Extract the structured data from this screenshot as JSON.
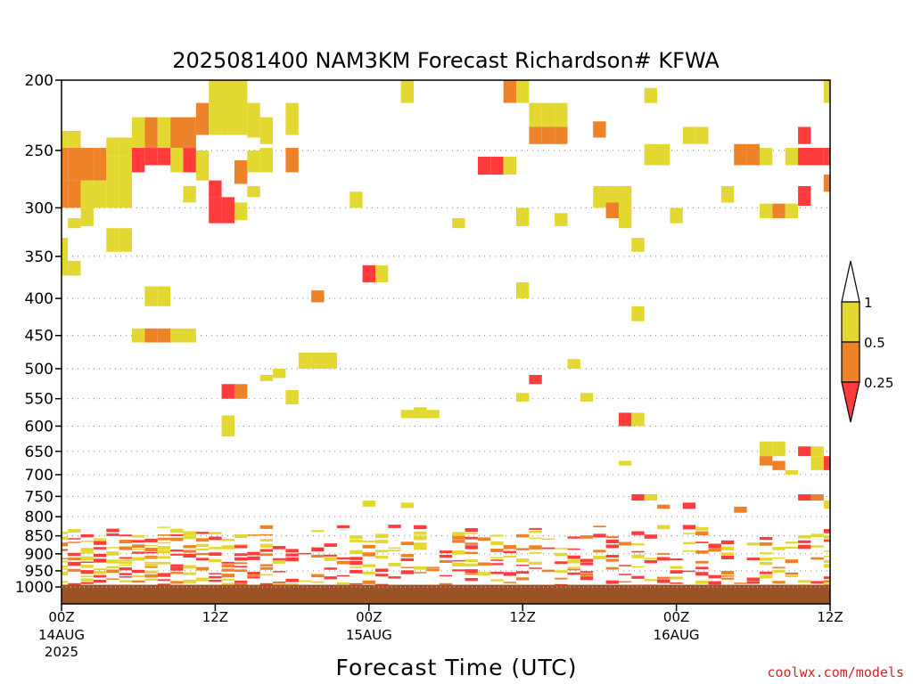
{
  "chart_data": {
    "type": "heatmap",
    "title": "2025081400 NAM3KM Forecast Richardson# KFWA",
    "xlabel": "Forecast Time (UTC)",
    "ylabel": "",
    "y_scale": "log-pressure",
    "y_inverted": true,
    "ylim": [
      1000,
      200
    ],
    "y_ticks": [
      200,
      250,
      300,
      350,
      400,
      450,
      500,
      550,
      600,
      650,
      700,
      750,
      800,
      850,
      900,
      950,
      1000
    ],
    "x_ticks": [
      {
        "x": 0,
        "label": "00Z",
        "date": "14AUG",
        "year": "2025"
      },
      {
        "x": 12,
        "label": "12Z",
        "date": "",
        "year": ""
      },
      {
        "x": 24,
        "label": "00Z",
        "date": "15AUG",
        "year": ""
      },
      {
        "x": 36,
        "label": "12Z",
        "date": "",
        "year": ""
      },
      {
        "x": 48,
        "label": "00Z",
        "date": "16AUG",
        "year": ""
      },
      {
        "x": 60,
        "label": "12Z",
        "date": "",
        "year": ""
      }
    ],
    "xlim": [
      0,
      60
    ],
    "grid": "dotted horizontal",
    "surface_color": "#9b5227",
    "colorbar": {
      "levels": [
        0,
        0.25,
        0.5,
        1
      ],
      "tick_labels": [
        "0.25",
        "0.5",
        "1"
      ],
      "colors": [
        "#ff3b3b",
        "#ee8228",
        "#e3d832"
      ],
      "extend": "both",
      "over_color": "#ffffff"
    },
    "cells": [
      [
        0,
        235,
        248,
        "y"
      ],
      [
        0,
        248,
        275,
        "o"
      ],
      [
        0,
        275,
        300,
        "o"
      ],
      [
        1,
        235,
        248,
        "y"
      ],
      [
        1,
        248,
        275,
        "o"
      ],
      [
        1,
        275,
        300,
        "o"
      ],
      [
        2,
        248,
        275,
        "o"
      ],
      [
        2,
        275,
        300,
        "y"
      ],
      [
        3,
        248,
        275,
        "o"
      ],
      [
        3,
        275,
        300,
        "y"
      ],
      [
        4,
        255,
        300,
        "y"
      ],
      [
        5,
        255,
        300,
        "y"
      ],
      [
        1,
        310,
        320,
        "y"
      ],
      [
        2,
        300,
        318,
        "y"
      ],
      [
        0,
        330,
        350,
        "y"
      ],
      [
        0,
        350,
        372,
        "y"
      ],
      [
        1,
        355,
        372,
        "y"
      ],
      [
        4,
        240,
        255,
        "y"
      ],
      [
        5,
        240,
        255,
        "y"
      ],
      [
        6,
        225,
        248,
        "y"
      ],
      [
        6,
        248,
        268,
        "r"
      ],
      [
        7,
        225,
        248,
        "o"
      ],
      [
        7,
        248,
        262,
        "r"
      ],
      [
        8,
        225,
        248,
        "y"
      ],
      [
        8,
        248,
        262,
        "r"
      ],
      [
        9,
        225,
        248,
        "o"
      ],
      [
        9,
        248,
        268,
        "y"
      ],
      [
        10,
        225,
        248,
        "o"
      ],
      [
        10,
        248,
        268,
        "r"
      ],
      [
        11,
        215,
        238,
        "o"
      ],
      [
        11,
        250,
        275,
        "y"
      ],
      [
        12,
        200,
        215,
        "y"
      ],
      [
        12,
        215,
        238,
        "y"
      ],
      [
        12,
        275,
        290,
        "r"
      ],
      [
        13,
        200,
        238,
        "y"
      ],
      [
        14,
        200,
        238,
        "y"
      ],
      [
        14,
        258,
        278,
        "o"
      ],
      [
        15,
        215,
        240,
        "y"
      ],
      [
        15,
        250,
        268,
        "y"
      ],
      [
        16,
        225,
        245,
        "y"
      ],
      [
        16,
        248,
        268,
        "y"
      ],
      [
        18,
        215,
        238,
        "y"
      ],
      [
        18,
        248,
        268,
        "o"
      ],
      [
        12,
        290,
        315,
        "r"
      ],
      [
        13,
        290,
        315,
        "r"
      ],
      [
        14,
        295,
        312,
        "y"
      ],
      [
        10,
        280,
        295,
        "y"
      ],
      [
        15,
        280,
        290,
        "y"
      ],
      [
        4,
        320,
        345,
        "y"
      ],
      [
        5,
        320,
        345,
        "y"
      ],
      [
        7,
        385,
        410,
        "y"
      ],
      [
        8,
        385,
        410,
        "y"
      ],
      [
        6,
        440,
        460,
        "y"
      ],
      [
        7,
        440,
        460,
        "o"
      ],
      [
        8,
        440,
        460,
        "o"
      ],
      [
        9,
        440,
        460,
        "y"
      ],
      [
        10,
        440,
        460,
        "y"
      ],
      [
        19,
        475,
        500,
        "y"
      ],
      [
        20,
        475,
        500,
        "y"
      ],
      [
        21,
        475,
        500,
        "y"
      ],
      [
        17,
        500,
        515,
        "y"
      ],
      [
        16,
        510,
        520,
        "y"
      ],
      [
        13,
        525,
        550,
        "r"
      ],
      [
        14,
        525,
        550,
        "o"
      ],
      [
        18,
        535,
        560,
        "y"
      ],
      [
        24,
        360,
        380,
        "r"
      ],
      [
        25,
        360,
        380,
        "y"
      ],
      [
        20,
        390,
        405,
        "o"
      ],
      [
        23,
        285,
        300,
        "y"
      ],
      [
        27,
        200,
        215,
        "y"
      ],
      [
        31,
        310,
        320,
        "y"
      ],
      [
        27,
        570,
        585,
        "y"
      ],
      [
        28,
        565,
        585,
        "y"
      ],
      [
        29,
        570,
        585,
        "y"
      ],
      [
        35,
        200,
        215,
        "o"
      ],
      [
        36,
        200,
        215,
        "y"
      ],
      [
        37,
        215,
        232,
        "y"
      ],
      [
        38,
        215,
        232,
        "y"
      ],
      [
        39,
        215,
        232,
        "y"
      ],
      [
        37,
        232,
        245,
        "o"
      ],
      [
        38,
        232,
        245,
        "o"
      ],
      [
        39,
        232,
        245,
        "o"
      ],
      [
        33,
        255,
        270,
        "r"
      ],
      [
        34,
        255,
        270,
        "r"
      ],
      [
        35,
        255,
        270,
        "y"
      ],
      [
        36,
        300,
        318,
        "y"
      ],
      [
        36,
        380,
        400,
        "y"
      ],
      [
        37,
        510,
        525,
        "r"
      ],
      [
        36,
        540,
        555,
        "y"
      ],
      [
        39,
        305,
        318,
        "y"
      ],
      [
        40,
        485,
        500,
        "y"
      ],
      [
        41,
        540,
        555,
        "y"
      ],
      [
        42,
        228,
        240,
        "o"
      ],
      [
        43,
        280,
        300,
        "y"
      ],
      [
        44,
        280,
        300,
        "y"
      ],
      [
        42,
        280,
        300,
        "y"
      ],
      [
        43,
        295,
        310,
        "o"
      ],
      [
        44,
        300,
        320,
        "y"
      ],
      [
        45,
        330,
        345,
        "y"
      ],
      [
        46,
        205,
        215,
        "y"
      ],
      [
        46,
        245,
        262,
        "y"
      ],
      [
        47,
        245,
        262,
        "y"
      ],
      [
        48,
        300,
        315,
        "y"
      ],
      [
        49,
        232,
        245,
        "y"
      ],
      [
        50,
        232,
        245,
        "y"
      ],
      [
        53,
        245,
        262,
        "o"
      ],
      [
        54,
        245,
        262,
        "o"
      ],
      [
        55,
        248,
        262,
        "y"
      ],
      [
        57,
        248,
        262,
        "y"
      ],
      [
        58,
        248,
        262,
        "y"
      ],
      [
        52,
        280,
        295,
        "y"
      ],
      [
        55,
        296,
        310,
        "y"
      ],
      [
        56,
        296,
        310,
        "o"
      ],
      [
        57,
        296,
        310,
        "y"
      ],
      [
        58,
        232,
        245,
        "r"
      ],
      [
        58,
        248,
        262,
        "r"
      ],
      [
        59,
        248,
        262,
        "r"
      ],
      [
        60,
        248,
        262,
        "r"
      ],
      [
        58,
        280,
        298,
        "r"
      ],
      [
        60,
        270,
        285,
        "o"
      ],
      [
        60,
        200,
        215,
        "y"
      ],
      [
        45,
        410,
        430,
        "y"
      ],
      [
        44,
        575,
        600,
        "r"
      ],
      [
        45,
        575,
        600,
        "y"
      ],
      [
        55,
        630,
        660,
        "y"
      ],
      [
        56,
        630,
        660,
        "y"
      ],
      [
        55,
        660,
        680,
        "o"
      ],
      [
        56,
        670,
        690,
        "o"
      ],
      [
        57,
        690,
        700,
        "y"
      ],
      [
        58,
        640,
        660,
        "r"
      ],
      [
        59,
        640,
        660,
        "y"
      ],
      [
        59,
        660,
        690,
        "y"
      ],
      [
        60,
        660,
        690,
        "r"
      ],
      [
        58,
        745,
        760,
        "r"
      ],
      [
        59,
        745,
        760,
        "o"
      ],
      [
        60,
        760,
        780,
        "y"
      ],
      [
        44,
        670,
        680,
        "y"
      ],
      [
        45,
        745,
        760,
        "r"
      ],
      [
        46,
        745,
        760,
        "y"
      ],
      [
        49,
        765,
        780,
        "r"
      ],
      [
        47,
        770,
        780,
        "o"
      ],
      [
        53,
        775,
        790,
        "o"
      ],
      [
        27,
        765,
        778,
        "y"
      ],
      [
        24,
        760,
        775,
        "y"
      ],
      [
        13,
        580,
        600,
        "y"
      ],
      [
        13,
        590,
        620,
        "y"
      ]
    ],
    "boundary_layer": {
      "x_start": 0,
      "x_end": 60,
      "p_top": 800,
      "p_bottom": 990
    }
  },
  "credit": "coolwx.com/models",
  "colors": {
    "red": "#ff3b3b",
    "orange": "#ee8228",
    "yellow": "#e3d832",
    "surface": "#9b5227",
    "grid": "#999999"
  }
}
